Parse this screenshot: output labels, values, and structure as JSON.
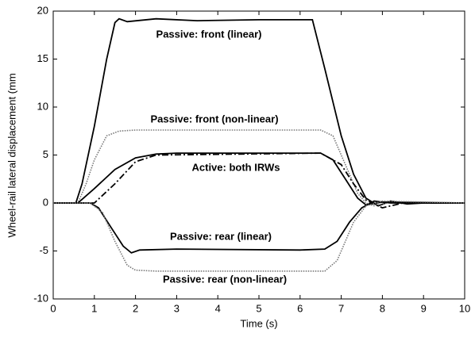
{
  "chart_data": {
    "type": "line",
    "xlabel": "Time (s)",
    "ylabel": "Wheel-rail lateral displacement (mm",
    "xlim": [
      0,
      10
    ],
    "xticks": [
      0,
      1,
      2,
      3,
      4,
      5,
      6,
      7,
      8,
      9,
      10
    ],
    "ylim": [
      -10,
      20
    ],
    "yticks": [
      -10,
      -5,
      0,
      5,
      10,
      15,
      20
    ],
    "series": [
      {
        "name": "Passive: front (linear)",
        "color": "#000000",
        "style": "solid",
        "x": [
          0,
          0.55,
          0.7,
          1.0,
          1.3,
          1.5,
          1.6,
          1.8,
          2.5,
          3.5,
          5,
          6.3,
          6.6,
          7.0,
          7.3,
          7.6,
          7.9,
          8.2,
          8.6,
          9,
          10
        ],
        "values": [
          0,
          0,
          2,
          8,
          15,
          18.8,
          19.2,
          18.9,
          19.2,
          19,
          19.1,
          19.1,
          14,
          7,
          3,
          0.5,
          -0.3,
          0.2,
          -0.1,
          0,
          0
        ]
      },
      {
        "name": "Passive: front (non-linear)",
        "color": "#777777",
        "style": "dotted",
        "x": [
          0,
          0.6,
          0.8,
          1.0,
          1.3,
          1.6,
          2,
          6.5,
          6.8,
          7.1,
          7.4,
          7.6,
          7.8,
          8.2,
          9,
          10
        ],
        "values": [
          0,
          0,
          2,
          4.5,
          7,
          7.5,
          7.6,
          7.6,
          7,
          4,
          1,
          0,
          -0.3,
          0.1,
          0,
          0
        ]
      },
      {
        "name": "Active: both IRWs",
        "color": "#000000",
        "style": "solid",
        "x": [
          0,
          0.6,
          1.0,
          1.5,
          2,
          2.5,
          3,
          6.5,
          6.8,
          7.1,
          7.4,
          7.6,
          8,
          10
        ],
        "values": [
          0,
          0,
          1.5,
          3.5,
          4.7,
          5.1,
          5.2,
          5.2,
          4.5,
          2.5,
          0.5,
          -0.2,
          0.1,
          0
        ]
      },
      {
        "color": "#000000",
        "style": "dashdot",
        "x": [
          0,
          1,
          1.5,
          2,
          2.5,
          6.5,
          7.0,
          7.3,
          7.6,
          8,
          8.5,
          10
        ],
        "values": [
          0,
          0,
          2,
          4.3,
          5,
          5.2,
          4,
          2,
          0.3,
          -0.5,
          0,
          0
        ]
      },
      {
        "name": "Passive: rear (linear)",
        "color": "#000000",
        "style": "solid",
        "x": [
          0,
          0.9,
          1.1,
          1.4,
          1.7,
          1.9,
          2.1,
          3,
          6,
          6.6,
          6.9,
          7.2,
          7.5,
          7.8,
          8.2,
          10
        ],
        "values": [
          0,
          0,
          -0.5,
          -2.5,
          -4.5,
          -5.2,
          -4.9,
          -4.8,
          -4.9,
          -4.8,
          -4,
          -2,
          -0.5,
          0.2,
          0,
          0
        ]
      },
      {
        "name": "Passive: rear (non-linear)",
        "color": "#777777",
        "style": "dotted",
        "x": [
          0,
          0.9,
          1.2,
          1.5,
          1.8,
          2,
          2.5,
          6.6,
          6.9,
          7.1,
          7.3,
          7.6,
          8,
          10
        ],
        "values": [
          0,
          0,
          -1,
          -4,
          -6.5,
          -7,
          -7.1,
          -7.1,
          -6,
          -4,
          -2,
          -0.3,
          0.2,
          0
        ]
      }
    ]
  }
}
